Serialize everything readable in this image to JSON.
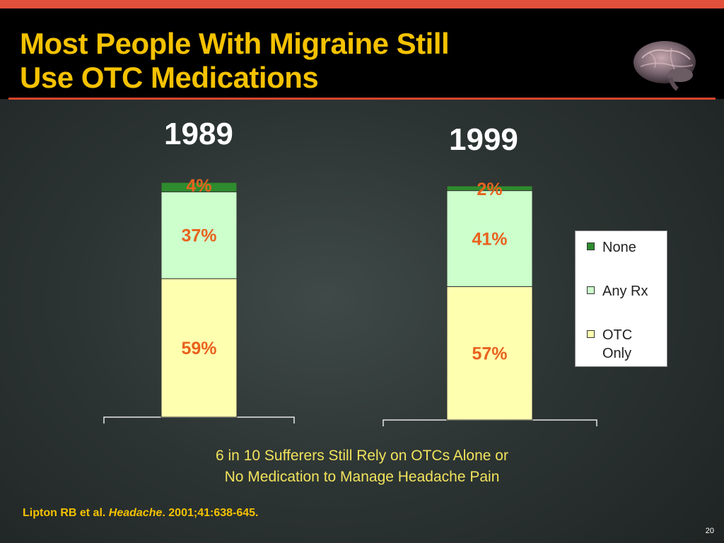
{
  "slide": {
    "title_line1": "Most People With Migraine Still",
    "title_line2": "Use OTC Medications",
    "subtitle_line1": "6 in 10 Sufferers Still Rely on OTCs Alone or",
    "subtitle_line2": "No Medication to Manage Headache Pain",
    "citation_authors": "Lipton RB et al. ",
    "citation_journal": "Headache",
    "citation_rest": ". 2001;41:638-645.",
    "page_number": "20",
    "icon": "brain-icon"
  },
  "colors": {
    "title": "#f5c200",
    "accent_bar": "#e0503a",
    "label": "#e8621e",
    "otc_only": "#ffffb0",
    "any_rx": "#ccffcc",
    "none": "#2e8b2e"
  },
  "chart_data": {
    "type": "bar",
    "stacked": true,
    "categories": [
      "1989",
      "1999"
    ],
    "series": [
      {
        "name": "OTC Only",
        "values": [
          59,
          57
        ],
        "labels": [
          "59%",
          "57%"
        ]
      },
      {
        "name": "Any Rx",
        "values": [
          37,
          41
        ],
        "labels": [
          "37%",
          "41%"
        ]
      },
      {
        "name": "None",
        "values": [
          4,
          2
        ],
        "labels": [
          "4%",
          "2%"
        ]
      }
    ],
    "legend_order": [
      "None",
      "Any Rx",
      "OTC Only"
    ],
    "legend": {
      "position": "right"
    },
    "ylim": [
      0,
      100
    ],
    "grid": false
  }
}
